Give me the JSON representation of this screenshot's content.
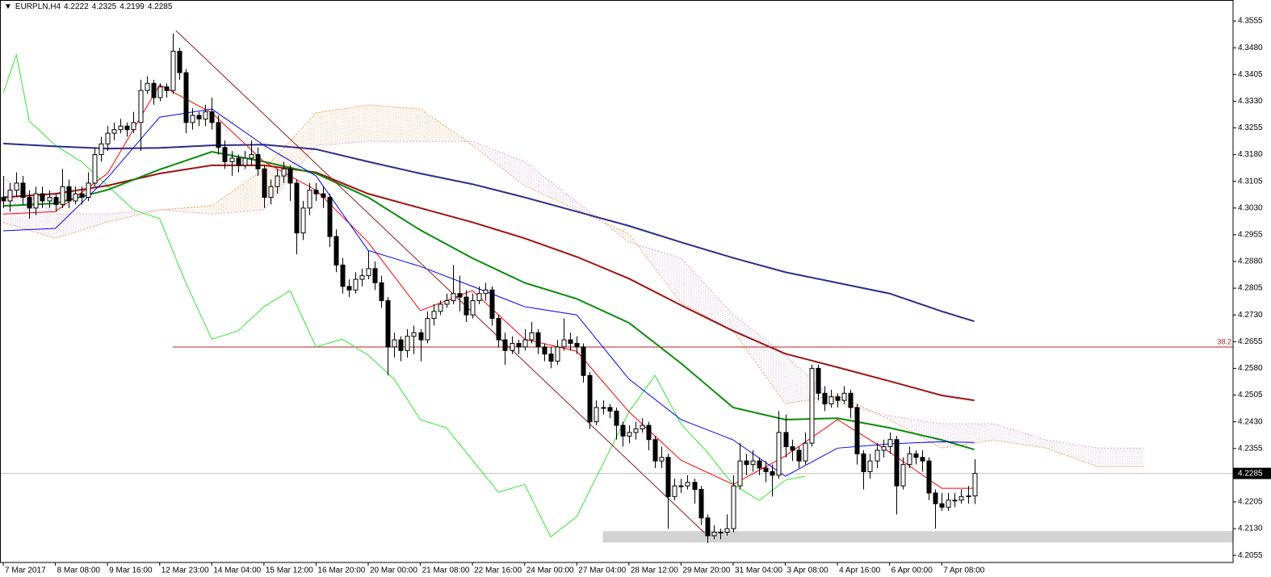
{
  "chart_data": {
    "type": "candlestick",
    "title": "EURPLN,H4",
    "xlim": [
      -0.5,
      188.7
    ],
    "ylim": [
      4.2035,
      4.3614
    ],
    "xticks": [
      {
        "value": 0,
        "label": "7 Mar 2017"
      },
      {
        "value": 8,
        "label": "8 Mar 08:00"
      },
      {
        "value": 16,
        "label": "9 Mar 16:00"
      },
      {
        "value": 24,
        "label": "12 Mar 23:00"
      },
      {
        "value": 32,
        "label": "14 Mar 04:00"
      },
      {
        "value": 40,
        "label": "15 Mar 12:00"
      },
      {
        "value": 48,
        "label": "16 Mar 20:00"
      },
      {
        "value": 56,
        "label": "20 Mar 00:00"
      },
      {
        "value": 64,
        "label": "21 Mar 08:00"
      },
      {
        "value": 72,
        "label": "22 Mar 16:00"
      },
      {
        "value": 80,
        "label": "24 Mar 00:00"
      },
      {
        "value": 88,
        "label": "27 Mar 04:00"
      },
      {
        "value": 96,
        "label": "28 Mar 12:00"
      },
      {
        "value": 104,
        "label": "29 Mar 20:00"
      },
      {
        "value": 112,
        "label": "31 Mar 04:00"
      },
      {
        "value": 120,
        "label": "3 Apr 08:00"
      },
      {
        "value": 128,
        "label": "4 Apr 16:00"
      },
      {
        "value": 136,
        "label": "6 Apr 00:00"
      },
      {
        "value": 144,
        "label": "7 Apr 08:00"
      }
    ],
    "yticks": [
      4.3555,
      {
        "value": 4.348,
        "label": "4.3480"
      },
      4.3405,
      {
        "value": 4.333,
        "label": "4.3330"
      },
      4.3255,
      {
        "value": 4.318,
        "label": "4.3180"
      },
      4.3105,
      {
        "value": 4.303,
        "label": "4.3030"
      },
      4.2955,
      {
        "value": 4.288,
        "label": "4.2880"
      },
      4.2805,
      {
        "value": 4.273,
        "label": "4.2730"
      },
      4.2655,
      {
        "value": 4.258,
        "label": "4.2580"
      },
      4.2505,
      {
        "value": 4.243,
        "label": "4.2430"
      },
      4.2355,
      4.2205,
      {
        "value": 4.213,
        "label": "4.2130"
      },
      4.2055
    ],
    "candles": [
      [
        4.306,
        4.312,
        4.303,
        4.305
      ],
      [
        4.305,
        4.31,
        4.302,
        4.308
      ],
      [
        4.308,
        4.313,
        4.306,
        4.31
      ],
      [
        4.31,
        4.312,
        4.304,
        4.306
      ],
      [
        4.306,
        4.308,
        4.3,
        4.303
      ],
      [
        4.303,
        4.309,
        4.301,
        4.307
      ],
      [
        4.307,
        4.309,
        4.303,
        4.305
      ],
      [
        4.305,
        4.308,
        4.303,
        4.306
      ],
      [
        4.306,
        4.307,
        4.302,
        4.304
      ],
      [
        4.304,
        4.314,
        4.303,
        4.309
      ],
      [
        4.309,
        4.311,
        4.303,
        4.305
      ],
      [
        4.305,
        4.309,
        4.304,
        4.307
      ],
      [
        4.307,
        4.309,
        4.304,
        4.306
      ],
      [
        4.306,
        4.313,
        4.305,
        4.31
      ],
      [
        4.31,
        4.32,
        4.309,
        4.318
      ],
      [
        4.318,
        4.323,
        4.316,
        4.321
      ],
      [
        4.321,
        4.326,
        4.319,
        4.324
      ],
      [
        4.324,
        4.327,
        4.322,
        4.325
      ],
      [
        4.325,
        4.328,
        4.324,
        4.326
      ],
      [
        4.326,
        4.327,
        4.323,
        4.325
      ],
      [
        4.325,
        4.33,
        4.324,
        4.327
      ],
      [
        4.327,
        4.339,
        4.319,
        4.336
      ],
      [
        4.336,
        4.34,
        4.335,
        4.338
      ],
      [
        4.338,
        4.339,
        4.332,
        4.334
      ],
      [
        4.334,
        4.338,
        4.333,
        4.337
      ],
      [
        4.337,
        4.338,
        4.334,
        4.336
      ],
      [
        4.336,
        4.352,
        4.335,
        4.347
      ],
      [
        4.347,
        4.348,
        4.339,
        4.341
      ],
      [
        4.341,
        4.342,
        4.324,
        4.327
      ],
      [
        4.327,
        4.331,
        4.325,
        4.329
      ],
      [
        4.329,
        4.33,
        4.326,
        4.328
      ],
      [
        4.328,
        4.332,
        4.326,
        4.33
      ],
      [
        4.33,
        4.334,
        4.325,
        4.327
      ],
      [
        4.327,
        4.329,
        4.318,
        4.32
      ],
      [
        4.32,
        4.322,
        4.314,
        4.316
      ],
      [
        4.316,
        4.319,
        4.312,
        4.317
      ],
      [
        4.317,
        4.318,
        4.313,
        4.315
      ],
      [
        4.315,
        4.319,
        4.314,
        4.317
      ],
      [
        4.317,
        4.322,
        4.315,
        4.318
      ],
      [
        4.318,
        4.32,
        4.312,
        4.314
      ],
      [
        4.314,
        4.315,
        4.303,
        4.306
      ],
      [
        4.306,
        4.311,
        4.304,
        4.309
      ],
      [
        4.309,
        4.314,
        4.307,
        4.312
      ],
      [
        4.312,
        4.316,
        4.31,
        4.314
      ],
      [
        4.314,
        4.315,
        4.305,
        4.31
      ],
      [
        4.31,
        4.311,
        4.29,
        4.296
      ],
      [
        4.296,
        4.305,
        4.294,
        4.303
      ],
      [
        4.303,
        4.31,
        4.301,
        4.308
      ],
      [
        4.308,
        4.31,
        4.305,
        4.307
      ],
      [
        4.307,
        4.309,
        4.303,
        4.306
      ],
      [
        4.306,
        4.307,
        4.292,
        4.295
      ],
      [
        4.295,
        4.297,
        4.285,
        4.287
      ],
      [
        4.287,
        4.289,
        4.279,
        4.281
      ],
      [
        4.281,
        4.283,
        4.278,
        4.28
      ],
      [
        4.28,
        4.285,
        4.279,
        4.283
      ],
      [
        4.283,
        4.286,
        4.281,
        4.284
      ],
      [
        4.284,
        4.291,
        4.283,
        4.286
      ],
      [
        4.286,
        4.288,
        4.28,
        4.282
      ],
      [
        4.282,
        4.284,
        4.275,
        4.277
      ],
      [
        4.277,
        4.278,
        4.256,
        4.264
      ],
      [
        4.264,
        4.268,
        4.261,
        4.266
      ],
      [
        4.266,
        4.267,
        4.26,
        4.263
      ],
      [
        4.263,
        4.269,
        4.261,
        4.267
      ],
      [
        4.267,
        4.27,
        4.262,
        4.268
      ],
      [
        4.268,
        4.269,
        4.26,
        4.266
      ],
      [
        4.266,
        4.274,
        4.265,
        4.272
      ],
      [
        4.272,
        4.276,
        4.27,
        4.274
      ],
      [
        4.274,
        4.277,
        4.273,
        4.276
      ],
      [
        4.276,
        4.279,
        4.275,
        4.277
      ],
      [
        4.277,
        4.287,
        4.276,
        4.279
      ],
      [
        4.279,
        4.284,
        4.274,
        4.278
      ],
      [
        4.278,
        4.28,
        4.271,
        4.273
      ],
      [
        4.273,
        4.279,
        4.272,
        4.277
      ],
      [
        4.277,
        4.281,
        4.276,
        4.279
      ],
      [
        4.279,
        4.282,
        4.277,
        4.28
      ],
      [
        4.28,
        4.281,
        4.27,
        4.272
      ],
      [
        4.272,
        4.273,
        4.264,
        4.266
      ],
      [
        4.266,
        4.268,
        4.259,
        4.263
      ],
      [
        4.263,
        4.267,
        4.262,
        4.265
      ],
      [
        4.265,
        4.266,
        4.262,
        4.264
      ],
      [
        4.264,
        4.269,
        4.263,
        4.266
      ],
      [
        4.266,
        4.271,
        4.265,
        4.268
      ],
      [
        4.268,
        4.269,
        4.262,
        4.264
      ],
      [
        4.264,
        4.265,
        4.26,
        4.262
      ],
      [
        4.262,
        4.264,
        4.258,
        4.26
      ],
      [
        4.26,
        4.266,
        4.259,
        4.264
      ],
      [
        4.264,
        4.272,
        4.263,
        4.266
      ],
      [
        4.266,
        4.268,
        4.263,
        4.265
      ],
      [
        4.265,
        4.267,
        4.262,
        4.264
      ],
      [
        4.264,
        4.265,
        4.254,
        4.256
      ],
      [
        4.256,
        4.257,
        4.241,
        4.243
      ],
      [
        4.243,
        4.249,
        4.242,
        4.247
      ],
      [
        4.247,
        4.249,
        4.245,
        4.247
      ],
      [
        4.247,
        4.248,
        4.244,
        4.246
      ],
      [
        4.246,
        4.247,
        4.238,
        4.242
      ],
      [
        4.242,
        4.243,
        4.236,
        4.239
      ],
      [
        4.239,
        4.242,
        4.237,
        4.24
      ],
      [
        4.24,
        4.243,
        4.238,
        4.241
      ],
      [
        4.241,
        4.244,
        4.24,
        4.242
      ],
      [
        4.242,
        4.243,
        4.235,
        4.238
      ],
      [
        4.238,
        4.239,
        4.23,
        4.232
      ],
      [
        4.232,
        4.236,
        4.23,
        4.233
      ],
      [
        4.233,
        4.234,
        4.213,
        4.222
      ],
      [
        4.222,
        4.227,
        4.221,
        4.225
      ],
      [
        4.225,
        4.227,
        4.223,
        4.225
      ],
      [
        4.225,
        4.228,
        4.224,
        4.226
      ],
      [
        4.226,
        4.227,
        4.22,
        4.224
      ],
      [
        4.224,
        4.225,
        4.214,
        4.216
      ],
      [
        4.216,
        4.217,
        4.209,
        4.211
      ],
      [
        4.211,
        4.214,
        4.21,
        4.212
      ],
      [
        4.212,
        4.213,
        4.21,
        4.212
      ],
      [
        4.212,
        4.217,
        4.211,
        4.213
      ],
      [
        4.213,
        4.228,
        4.212,
        4.225
      ],
      [
        4.225,
        4.237,
        4.224,
        4.232
      ],
      [
        4.232,
        4.234,
        4.228,
        4.231
      ],
      [
        4.231,
        4.235,
        4.229,
        4.232
      ],
      [
        4.232,
        4.233,
        4.228,
        4.23
      ],
      [
        4.23,
        4.232,
        4.226,
        4.229
      ],
      [
        4.229,
        4.231,
        4.222,
        4.228
      ],
      [
        4.228,
        4.246,
        4.227,
        4.24
      ],
      [
        4.24,
        4.245,
        4.233,
        4.236
      ],
      [
        4.236,
        4.238,
        4.232,
        4.235
      ],
      [
        4.235,
        4.236,
        4.23,
        4.232
      ],
      [
        4.232,
        4.24,
        4.231,
        4.237
      ],
      [
        4.237,
        4.259,
        4.236,
        4.258
      ],
      [
        4.258,
        4.259,
        4.249,
        4.251
      ],
      [
        4.251,
        4.253,
        4.246,
        4.248
      ],
      [
        4.248,
        4.252,
        4.247,
        4.25
      ],
      [
        4.25,
        4.251,
        4.247,
        4.249
      ],
      [
        4.249,
        4.253,
        4.248,
        4.251
      ],
      [
        4.251,
        4.252,
        4.244,
        4.247
      ],
      [
        4.247,
        4.248,
        4.231,
        4.234
      ],
      [
        4.234,
        4.235,
        4.224,
        4.229
      ],
      [
        4.229,
        4.234,
        4.227,
        4.232
      ],
      [
        4.232,
        4.237,
        4.23,
        4.235
      ],
      [
        4.235,
        4.238,
        4.233,
        4.236
      ],
      [
        4.236,
        4.24,
        4.234,
        4.238
      ],
      [
        4.238,
        4.239,
        4.217,
        4.225
      ],
      [
        4.225,
        4.233,
        4.224,
        4.231
      ],
      [
        4.231,
        4.236,
        4.23,
        4.234
      ],
      [
        4.234,
        4.235,
        4.231,
        4.233
      ],
      [
        4.233,
        4.235,
        4.229,
        4.232
      ],
      [
        4.232,
        4.233,
        4.221,
        4.223
      ],
      [
        4.223,
        4.224,
        4.213,
        4.22
      ],
      [
        4.22,
        4.223,
        4.218,
        4.219
      ],
      [
        4.219,
        4.223,
        4.218,
        4.221
      ],
      [
        4.221,
        4.223,
        4.219,
        4.221
      ],
      [
        4.221,
        4.224,
        4.22,
        4.222
      ],
      [
        4.222,
        4.225,
        4.22,
        4.2222
      ],
      [
        4.2222,
        4.2325,
        4.2199,
        4.2285
      ]
    ],
    "bull_color": "#ffffff",
    "bear_color": "#000000",
    "series_x": [
      0,
      8,
      16,
      24,
      32,
      40,
      48,
      56,
      64,
      72,
      80,
      88,
      96,
      104,
      112,
      120,
      128,
      136,
      144,
      149
    ],
    "series": [
      {
        "color": "#2b2b8c",
        "width": 2,
        "values": [
          4.3211,
          4.3203,
          4.3197,
          4.3199,
          4.3206,
          4.3208,
          4.3195,
          4.316,
          4.3127,
          4.3097,
          4.306,
          4.302,
          4.298,
          4.2934,
          4.289,
          4.285,
          4.282,
          4.279,
          4.274,
          4.2712
        ]
      },
      {
        "color": "#a01010",
        "width": 2,
        "values": [
          4.306,
          4.307,
          4.3093,
          4.3127,
          4.315,
          4.315,
          4.313,
          4.307,
          4.303,
          4.299,
          4.2945,
          4.2893,
          4.2832,
          4.2757,
          4.2685,
          4.2621,
          4.2583,
          4.2544,
          4.2504,
          4.249
        ]
      },
      {
        "color": "#0a8a0a",
        "width": 2,
        "values": [
          4.3036,
          4.3043,
          4.3081,
          4.3138,
          4.3188,
          4.316,
          4.3127,
          4.306,
          4.2968,
          4.2889,
          4.282,
          4.2775,
          4.2708,
          4.2594,
          4.247,
          4.2436,
          4.244,
          4.2413,
          4.2379,
          4.2352
        ]
      },
      {
        "color": "#ff0000",
        "width": 1,
        "values": [
          4.3013,
          4.302,
          4.3127,
          4.3376,
          4.3297,
          4.316,
          4.308,
          4.2934,
          4.2742,
          4.2798,
          4.2662,
          4.2628,
          4.2458,
          4.2322,
          4.2254,
          4.2334,
          4.2436,
          4.2345,
          4.2243,
          4.2243
        ]
      },
      {
        "color": "#0000ff",
        "width": 1,
        "values": [
          4.2966,
          4.2973,
          4.3115,
          4.3285,
          4.3308,
          4.3206,
          4.312,
          4.2911,
          4.2866,
          4.281,
          4.2753,
          4.273,
          4.255,
          4.2436,
          4.2379,
          4.2277,
          4.2356,
          4.2368,
          4.2374,
          4.2372
        ]
      }
    ],
    "chikou": {
      "color": "#32e632",
      "x": [
        0,
        2,
        4,
        8,
        12,
        16,
        20,
        24,
        28,
        32,
        36,
        40,
        44,
        48,
        52,
        56,
        60,
        64,
        68,
        72,
        76,
        80,
        84,
        88,
        92,
        96,
        100,
        104,
        108,
        112,
        116,
        120,
        123
      ],
      "values": [
        4.3353,
        4.346,
        4.3274,
        4.3206,
        4.316,
        4.3093,
        4.3025,
        4.3,
        4.282,
        4.2662,
        4.2685,
        4.2753,
        4.2798,
        4.264,
        4.2662,
        4.2617,
        4.2549,
        4.2436,
        4.2413,
        4.2322,
        4.2232,
        4.2254,
        4.2107,
        4.2164,
        4.2311,
        4.2458,
        4.256,
        4.2424,
        4.2345,
        4.2254,
        4.2209,
        4.2266,
        4.2277
      ]
    },
    "cloud": {
      "x": [
        0,
        8,
        16,
        24,
        32,
        40,
        48,
        56,
        64,
        72,
        80,
        88,
        96,
        104,
        112,
        120,
        128,
        136,
        144,
        152,
        160,
        168,
        175
      ],
      "span_a": {
        "color": "#f4a460",
        "values": [
          4.299,
          4.2945,
          4.2991,
          4.3025,
          4.3036,
          4.3138,
          4.3297,
          4.3319,
          4.3308,
          4.3206,
          4.3093,
          4.3025,
          4.2957,
          4.2764,
          4.2685,
          4.2481,
          4.2504,
          4.2436,
          4.2356,
          4.2379,
          4.2356,
          4.2304,
          4.2304
        ]
      },
      "span_b": {
        "color": "#d8a8d8",
        "values": [
          4.3115,
          4.3013,
          4.3013,
          4.3025,
          4.3013,
          4.3025,
          4.3206,
          4.3217,
          4.3217,
          4.3217,
          4.316,
          4.3047,
          4.2934,
          4.289,
          4.273,
          4.2617,
          4.2481,
          4.2447,
          4.2424,
          4.2424,
          4.2379,
          4.2356,
          4.2356
        ]
      }
    },
    "trendline": {
      "color": "#8b1a1a",
      "x": [
        26.5,
        107.6
      ],
      "y": [
        4.3528,
        4.2118
      ]
    },
    "level": {
      "value": 4.264,
      "label": "38.2",
      "color": "#b22222",
      "x": 26
    },
    "zone": {
      "color": "#d3d3d3",
      "x": [
        92,
        188.7
      ],
      "y": [
        4.2091,
        4.2123
      ]
    },
    "last_price_color": "#c0c0c0"
  }
}
